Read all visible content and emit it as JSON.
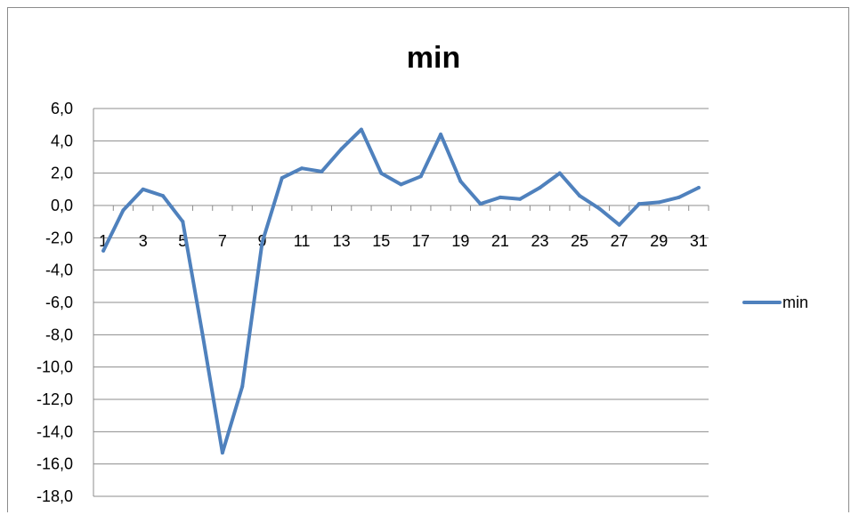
{
  "chart_data": {
    "type": "line",
    "title": "min",
    "xlabel": "",
    "ylabel": "",
    "categories": [
      "1",
      "2",
      "3",
      "4",
      "5",
      "6",
      "7",
      "8",
      "9",
      "10",
      "11",
      "12",
      "13",
      "14",
      "15",
      "16",
      "17",
      "18",
      "19",
      "20",
      "21",
      "22",
      "23",
      "24",
      "25",
      "26",
      "27",
      "28",
      "29",
      "30",
      "31"
    ],
    "x_tick_labels": [
      "1",
      "3",
      "5",
      "7",
      "9",
      "11",
      "13",
      "15",
      "17",
      "19",
      "21",
      "23",
      "25",
      "27",
      "29",
      "31"
    ],
    "y_tick_labels": [
      "6,0",
      "4,0",
      "2,0",
      "0,0",
      "-2,0",
      "-4,0",
      "-6,0",
      "-8,0",
      "-10,0",
      "-12,0",
      "-14,0",
      "-16,0",
      "-18,0"
    ],
    "ylim": [
      -18,
      6
    ],
    "ytick_step": 2,
    "grid": true,
    "legend_position": "right",
    "series": [
      {
        "name": "min",
        "color": "#4f81bd",
        "values": [
          -2.8,
          -0.3,
          1.0,
          0.6,
          -1.0,
          -8.0,
          -15.3,
          -11.2,
          -2.3,
          1.7,
          2.3,
          2.1,
          3.5,
          4.7,
          2.0,
          1.3,
          1.8,
          4.4,
          1.5,
          0.1,
          0.5,
          0.4,
          1.1,
          2.0,
          0.6,
          -0.2,
          -1.2,
          0.1,
          0.2,
          0.5,
          1.1
        ]
      }
    ]
  }
}
